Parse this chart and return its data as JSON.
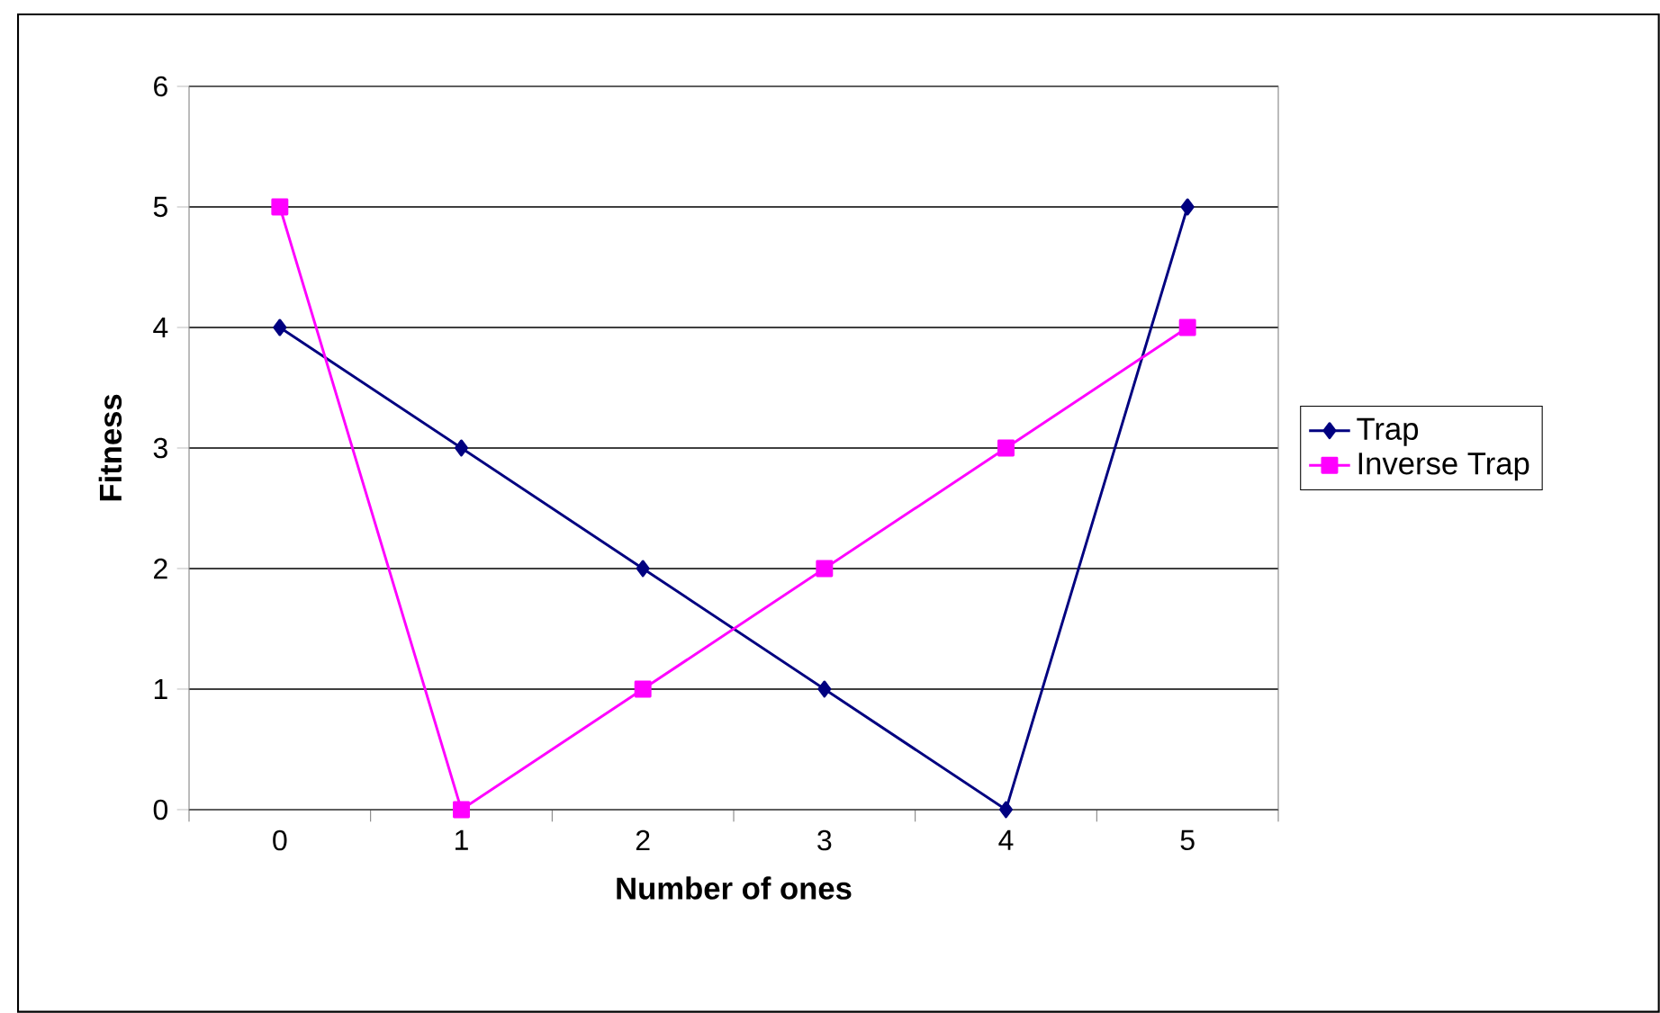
{
  "chart_data": {
    "type": "line",
    "xlabel": "Number of ones",
    "ylabel": "Fitness",
    "categories": [
      "0",
      "1",
      "2",
      "3",
      "4",
      "5"
    ],
    "series": [
      {
        "name": "Trap",
        "color": "#000080",
        "marker": "diamond",
        "values": [
          4,
          3,
          2,
          1,
          0,
          5
        ]
      },
      {
        "name": "Inverse Trap",
        "color": "#ff00ff",
        "marker": "square",
        "values": [
          5,
          0,
          1,
          2,
          3,
          4
        ]
      }
    ],
    "ylim": [
      0,
      6
    ],
    "yticks": [
      0,
      1,
      2,
      3,
      4,
      5,
      6
    ],
    "grid": "y",
    "legend": "right",
    "line_style": "solid"
  }
}
